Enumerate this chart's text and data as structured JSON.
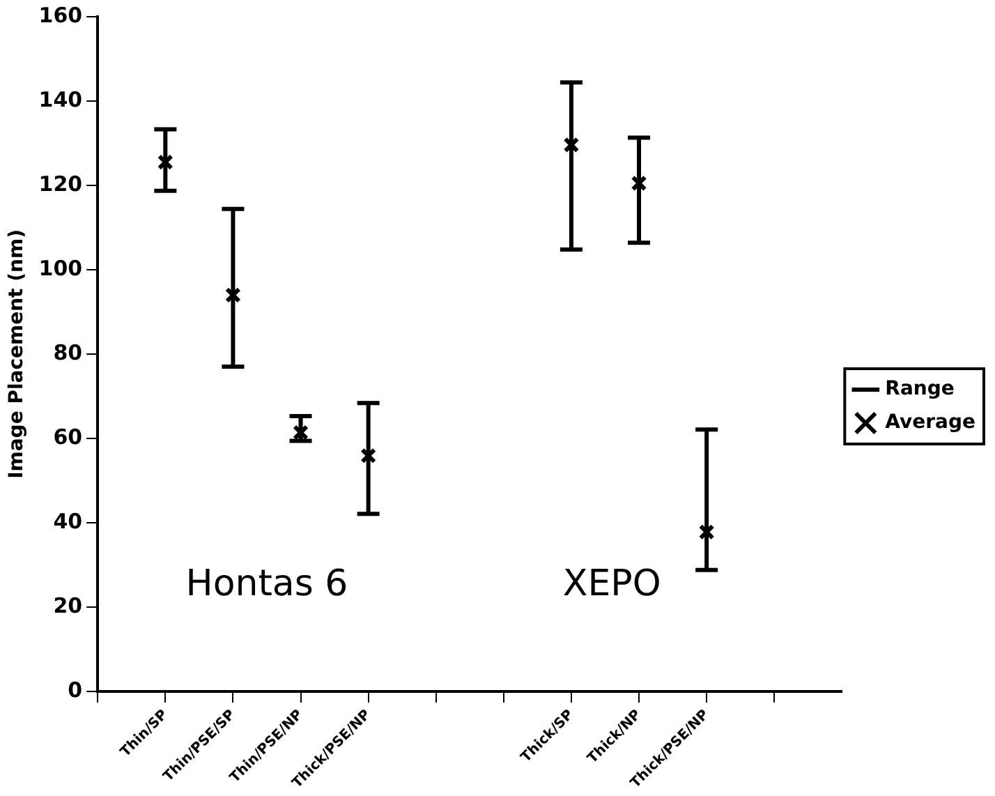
{
  "chart_data": {
    "type": "scatter",
    "ylabel": "Image Placement (nm)",
    "categories": [
      "Thin/SP",
      "Thin/PSE/SP",
      "Thin/PSE/NP",
      "Thick/PSE/NP",
      null,
      null,
      "Thick/SP",
      "Thick/NP",
      "Thick/PSE/NP",
      null
    ],
    "ylim": [
      0,
      160
    ],
    "yticks": [
      0,
      20,
      40,
      60,
      80,
      100,
      120,
      140,
      160
    ],
    "grid": false,
    "legend": "right",
    "marker": "cross",
    "series": [
      {
        "name": "Range",
        "type": "line",
        "color": "#000000",
        "values": [
          null,
          null,
          null,
          null,
          null,
          null,
          null,
          null,
          null,
          null
        ]
      },
      {
        "name": "Average",
        "color": "#000000",
        "values": [
          125.5,
          94,
          61.4,
          55.9,
          null,
          null,
          129.6,
          120.5,
          37.8,
          null
        ],
        "errors": [
          [
            118.7,
            133.3
          ],
          [
            77,
            114.4
          ],
          [
            59.4,
            65.3
          ],
          [
            42.1,
            68.4
          ],
          null,
          null,
          [
            104.8,
            144.4
          ],
          [
            106.4,
            131.3
          ],
          [
            28.8,
            62.1
          ],
          null
        ]
      }
    ],
    "annotations": [
      "Hontas 6",
      "XEPO"
    ]
  }
}
